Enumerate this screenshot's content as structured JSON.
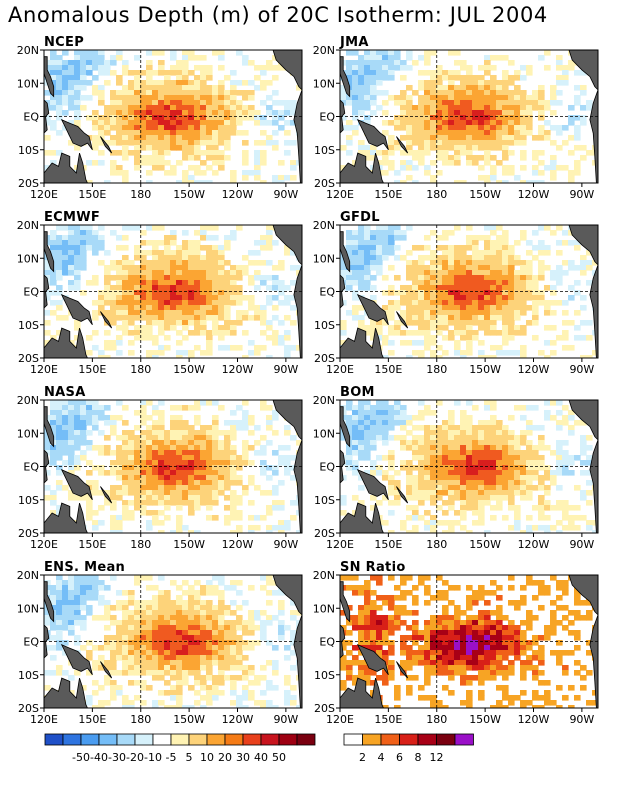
{
  "title": "Anomalous Depth (m) of 20C Isotherm: JUL 2004",
  "x_ticks": [
    "120E",
    "150E",
    "180",
    "150W",
    "120W",
    "90W"
  ],
  "y_ticks": [
    "20N",
    "10N",
    "EQ",
    "10S",
    "20S"
  ],
  "panels": [
    {
      "title": "NCEP"
    },
    {
      "title": "JMA"
    },
    {
      "title": "ECMWF"
    },
    {
      "title": "GFDL"
    },
    {
      "title": "NASA"
    },
    {
      "title": "BOM"
    },
    {
      "title": "ENS. Mean"
    },
    {
      "title": "SN Ratio"
    }
  ],
  "colorbar_left": {
    "labels": [
      "-50",
      "-40",
      "-30",
      "-20",
      "-10",
      "-5",
      "5",
      "10",
      "20",
      "30",
      "40",
      "50"
    ],
    "colors": [
      "#1f50c8",
      "#2e74e0",
      "#4a9cf0",
      "#74bdf7",
      "#a8daf8",
      "#d6f1fb",
      "#ffffff",
      "#fff3b4",
      "#fdd37a",
      "#fba533",
      "#f57b16",
      "#e8401c",
      "#c8141e",
      "#9e0012",
      "#7a0010"
    ]
  },
  "colorbar_right": {
    "labels": [
      "2",
      "4",
      "6",
      "8",
      "12"
    ],
    "colors": [
      "#ffffff",
      "#f7a424",
      "#f06018",
      "#d82018",
      "#a80016",
      "#7a0010",
      "#9a10c8"
    ]
  },
  "chart_data": [
    {
      "type": "heatmap",
      "title": "NCEP",
      "field": "anomalous depth of 20C isotherm (m)",
      "xlim": [
        "120E",
        "80W"
      ],
      "ylim": [
        "20S",
        "20N"
      ],
      "max_anomaly_region": "central Pacific near EQ, 170W-140W",
      "max_value_approx": 30
    },
    {
      "type": "heatmap",
      "title": "JMA",
      "field": "anomalous depth of 20C isotherm (m)",
      "xlim": [
        "120E",
        "80W"
      ],
      "ylim": [
        "20S",
        "20N"
      ],
      "max_anomaly_region": "central Pacific near EQ, 170W-140W",
      "max_value_approx": 30
    },
    {
      "type": "heatmap",
      "title": "ECMWF",
      "field": "anomalous depth of 20C isotherm (m)",
      "xlim": [
        "120E",
        "80W"
      ],
      "ylim": [
        "20S",
        "20N"
      ],
      "max_anomaly_region": "central Pacific near EQ, 170W-140W",
      "max_value_approx": 40
    },
    {
      "type": "heatmap",
      "title": "GFDL",
      "field": "anomalous depth of 20C isotherm (m)",
      "xlim": [
        "120E",
        "80W"
      ],
      "ylim": [
        "20S",
        "20N"
      ],
      "max_anomaly_region": "central Pacific near EQ, 170W-140W",
      "max_value_approx": 30
    },
    {
      "type": "heatmap",
      "title": "NASA",
      "field": "anomalous depth of 20C isotherm (m)",
      "xlim": [
        "120E",
        "80W"
      ],
      "ylim": [
        "20S",
        "20N"
      ],
      "max_anomaly_region": "central Pacific near EQ, 170W-140W",
      "max_value_approx": 30
    },
    {
      "type": "heatmap",
      "title": "BOM",
      "field": "anomalous depth of 20C isotherm (m)",
      "xlim": [
        "120E",
        "80W"
      ],
      "ylim": [
        "20S",
        "20N"
      ],
      "max_anomaly_region": "central Pacific near EQ, 170W-140W",
      "max_value_approx": 30
    },
    {
      "type": "heatmap",
      "title": "ENS. Mean",
      "field": "anomalous depth of 20C isotherm (m)",
      "xlim": [
        "120E",
        "80W"
      ],
      "ylim": [
        "20S",
        "20N"
      ],
      "max_anomaly_region": "central Pacific near EQ, 170W-140W",
      "max_value_approx": 30
    },
    {
      "type": "heatmap",
      "title": "SN Ratio",
      "field": "signal-to-noise ratio",
      "xlim": [
        "120E",
        "80W"
      ],
      "ylim": [
        "20S",
        "20N"
      ],
      "max_anomaly_region": "central Pacific near EQ, 180-130W",
      "max_value_approx": 12
    }
  ]
}
